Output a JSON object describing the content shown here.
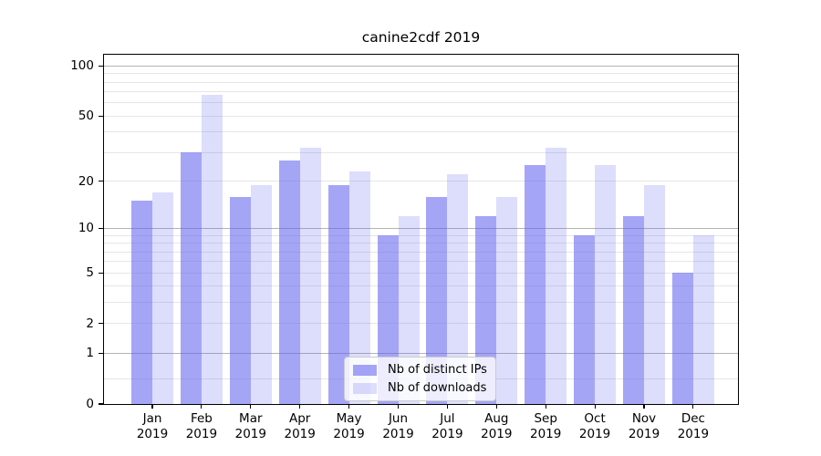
{
  "title": "canine2cdf 2019",
  "chart_data": {
    "type": "bar",
    "title": "canine2cdf 2019",
    "categories": [
      "Jan 2019",
      "Feb 2019",
      "Mar 2019",
      "Apr 2019",
      "May 2019",
      "Jun 2019",
      "Jul 2019",
      "Aug 2019",
      "Sep 2019",
      "Oct 2019",
      "Nov 2019",
      "Dec 2019"
    ],
    "x_months": [
      "Jan",
      "Feb",
      "Mar",
      "Apr",
      "May",
      "Jun",
      "Jul",
      "Aug",
      "Sep",
      "Oct",
      "Nov",
      "Dec"
    ],
    "x_year": "2019",
    "series": [
      {
        "name": "Nb of distinct IPs",
        "values": [
          15,
          30,
          16,
          27,
          19,
          9,
          16,
          12,
          25,
          9,
          12,
          5
        ]
      },
      {
        "name": "Nb of downloads",
        "values": [
          17,
          67,
          19,
          32,
          23,
          12,
          22,
          16,
          32,
          25,
          19,
          9
        ]
      }
    ],
    "yscale": "log1p",
    "ylim": [
      0,
      116
    ],
    "y_ticks": [
      {
        "value": 100,
        "label": "100"
      },
      {
        "value": 50,
        "label": "50"
      },
      {
        "value": 20,
        "label": "20"
      },
      {
        "value": 10,
        "label": "10"
      },
      {
        "value": 5,
        "label": "5"
      },
      {
        "value": 2,
        "label": "2"
      },
      {
        "value": 1,
        "label": "1"
      },
      {
        "value": 0,
        "label": "0"
      }
    ],
    "grid": {
      "major": [
        1,
        10,
        100
      ],
      "minor": [
        0.4,
        2,
        3,
        4,
        5,
        6,
        7,
        8,
        9,
        20,
        30,
        40,
        50,
        60,
        70,
        80,
        90
      ]
    },
    "legend_position": "lower-center-inside"
  },
  "colors": {
    "bar_ips": "rgba(100,100,240,0.58)",
    "bar_downloads": "rgba(100,100,240,0.22)",
    "grid_major": "#b4b4b4",
    "grid_minor": "#e6e6e6",
    "spine": "#000000",
    "text": "#000000",
    "legend_border": "#cccccc",
    "legend_bg": "rgba(255,255,255,0.8)"
  }
}
